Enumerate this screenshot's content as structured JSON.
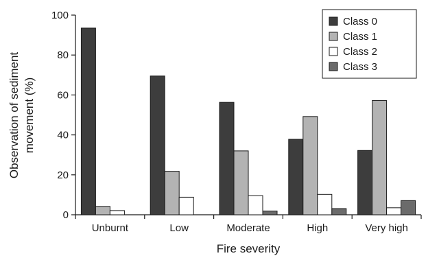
{
  "chart_data": {
    "type": "bar",
    "title": "",
    "xlabel": "Fire severity",
    "ylabel_lines": [
      "Observation of sediment",
      "movement (%)"
    ],
    "categories": [
      "Unburnt",
      "Low",
      "Moderate",
      "High",
      "Very high"
    ],
    "series": [
      {
        "name": "Class 0",
        "color": "#3d3d3d",
        "values": [
          93.5,
          69.5,
          56.3,
          37.8,
          32.2
        ]
      },
      {
        "name": "Class 1",
        "color": "#b3b3b3",
        "values": [
          4.2,
          21.8,
          32.0,
          49.2,
          57.2
        ]
      },
      {
        "name": "Class 2",
        "color": "#ffffff",
        "values": [
          2.1,
          8.8,
          9.6,
          10.2,
          3.5
        ]
      },
      {
        "name": "Class 3",
        "color": "#6b6b6b",
        "values": [
          0,
          0,
          1.9,
          3.1,
          7.1
        ]
      }
    ],
    "ylim": [
      0,
      100
    ],
    "yticks": [
      0,
      20,
      40,
      60,
      80,
      100
    ],
    "grid": false,
    "legend": "top-right"
  }
}
